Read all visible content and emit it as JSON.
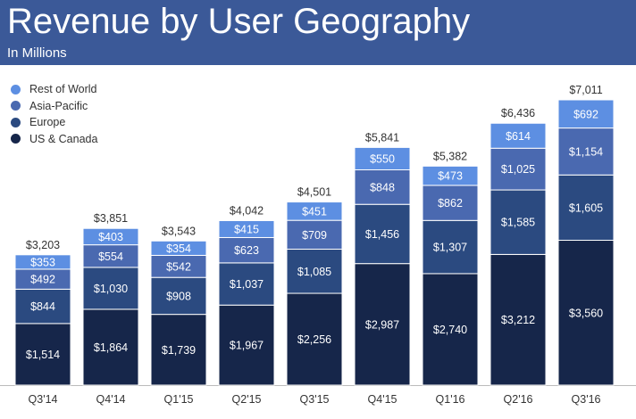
{
  "header": {
    "title": "Revenue by User Geography",
    "subtitle": "In Millions",
    "color": "#3b5998"
  },
  "chart_data": {
    "type": "bar",
    "stacked": true,
    "title": "Revenue by User Geography",
    "subtitle": "In Millions",
    "categories": [
      "Q3'14",
      "Q4'14",
      "Q1'15",
      "Q2'15",
      "Q3'15",
      "Q4'15",
      "Q1'16",
      "Q2'16",
      "Q3'16"
    ],
    "series": [
      {
        "name": "US & Canada",
        "color": "#16264a",
        "values": [
          1514,
          1864,
          1739,
          1967,
          2256,
          2987,
          2740,
          3212,
          3560
        ],
        "labels": [
          "$1,514",
          "$1,864",
          "$1,739",
          "$1,967",
          "$2,256",
          "$2,987",
          "$2,740",
          "$3,212",
          "$3,560"
        ]
      },
      {
        "name": "Europe",
        "color": "#2b4a80",
        "values": [
          844,
          1030,
          908,
          1037,
          1085,
          1456,
          1307,
          1585,
          1605
        ],
        "labels": [
          "$844",
          "$1,030",
          "$908",
          "$1,037",
          "$1,085",
          "$1,456",
          "$1,307",
          "$1,585",
          "$1,605"
        ]
      },
      {
        "name": "Asia-Pacific",
        "color": "#4a69b0",
        "values": [
          492,
          554,
          542,
          623,
          709,
          848,
          862,
          1025,
          1154
        ],
        "labels": [
          "$492",
          "$554",
          "$542",
          "$623",
          "$709",
          "$848",
          "$862",
          "$1,025",
          "$1,154"
        ]
      },
      {
        "name": "Rest of World",
        "color": "#5d8fe2",
        "values": [
          353,
          403,
          354,
          415,
          451,
          550,
          473,
          614,
          692
        ],
        "labels": [
          "$353",
          "$403",
          "$354",
          "$415",
          "$451",
          "$550",
          "$473",
          "$614",
          "$692"
        ]
      }
    ],
    "totals": [
      "$3,203",
      "$3,851",
      "$3,543",
      "$4,042",
      "$4,501",
      "$5,841",
      "$5,382",
      "$6,436",
      "$7,011"
    ],
    "legend_order": [
      "Rest of World",
      "Asia-Pacific",
      "Europe",
      "US & Canada"
    ],
    "legend_position": "top-left",
    "ylim": [
      0,
      7011
    ],
    "grid": false
  }
}
